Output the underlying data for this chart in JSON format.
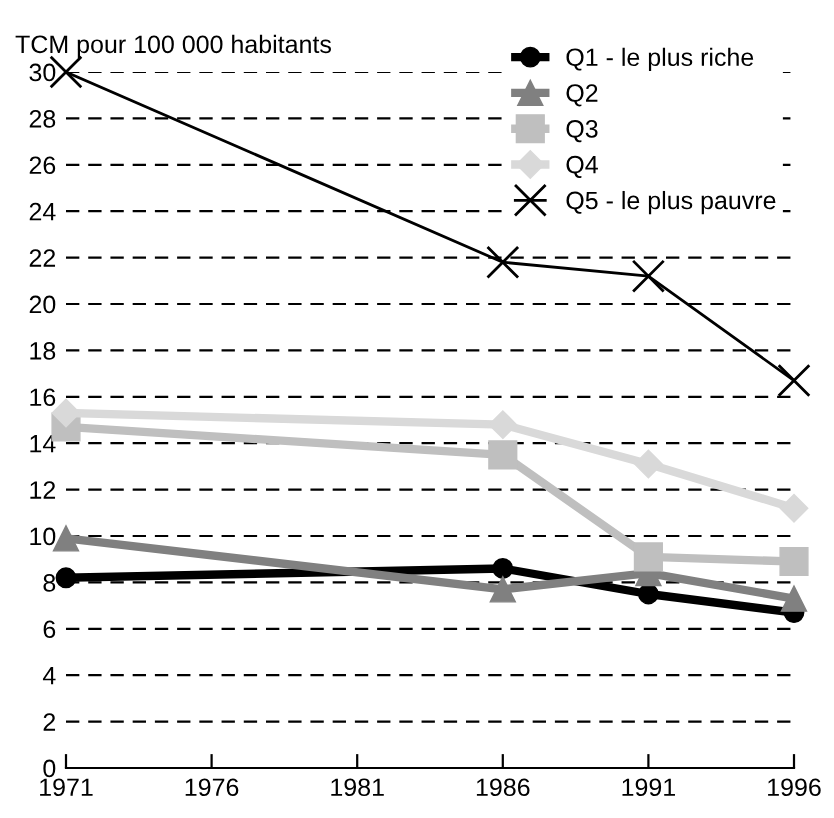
{
  "chart_data": {
    "type": "line",
    "ylabel": "TCM pour 100 000 habitants",
    "x": [
      1971,
      1986,
      1991,
      1996
    ],
    "xlim": [
      1971,
      1996
    ],
    "xticks": [
      1971,
      1976,
      1981,
      1986,
      1991,
      1996
    ],
    "ylim": [
      0,
      30
    ],
    "yticks": [
      0,
      2,
      4,
      6,
      8,
      10,
      12,
      14,
      16,
      18,
      20,
      22,
      24,
      26,
      28,
      30
    ],
    "grid": "y",
    "legend": "top right",
    "series": [
      {
        "name": "Q1 - le plus riche",
        "color": "#000000",
        "marker": "circle",
        "values": [
          8.2,
          8.6,
          7.5,
          6.7
        ]
      },
      {
        "name": "Q2",
        "color": "#808080",
        "marker": "triangle",
        "values": [
          9.9,
          7.7,
          8.4,
          7.3
        ]
      },
      {
        "name": "Q3",
        "color": "#bfbfbf",
        "marker": "square",
        "values": [
          14.7,
          13.5,
          9.1,
          8.9
        ]
      },
      {
        "name": "Q4",
        "color": "#d9d9d9",
        "marker": "diamond",
        "values": [
          15.3,
          14.8,
          13.1,
          11.2
        ]
      },
      {
        "name": "Q5 - le plus pauvre",
        "color": "#000000",
        "marker": "cross",
        "values": [
          30,
          21.8,
          21.2,
          16.7
        ]
      }
    ]
  }
}
